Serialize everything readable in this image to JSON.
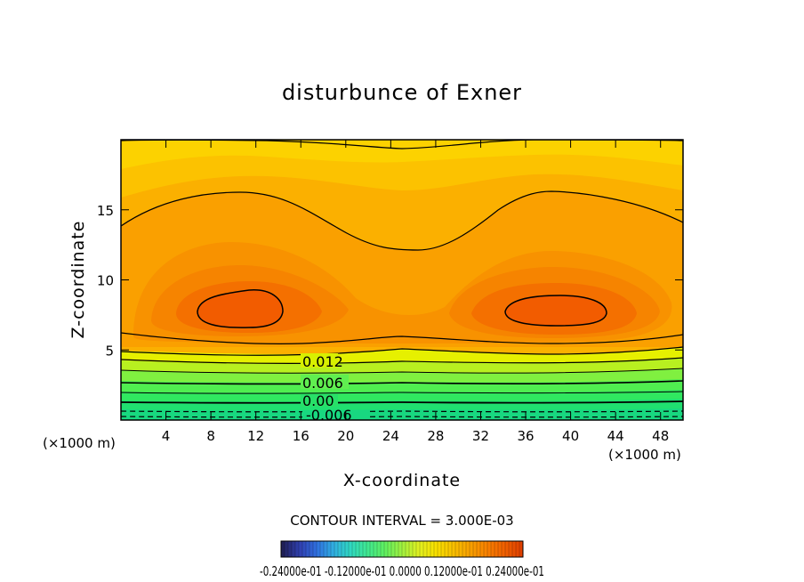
{
  "chart_data": {
    "type": "contour",
    "title": "disturbunce of Exner",
    "xlabel": "X-coordinate",
    "ylabel": "Z-coordinate",
    "x_unit": "(×1000 m)",
    "y_unit": "(×1000 m)",
    "xlim": [
      0,
      50
    ],
    "ylim": [
      0,
      20
    ],
    "x_ticks": [
      4,
      8,
      12,
      16,
      20,
      24,
      28,
      32,
      36,
      40,
      44,
      48
    ],
    "y_ticks": [
      5,
      10,
      15
    ],
    "contour_interval_label": "CONTOUR INTERVAL = 3.000E-03",
    "contour_labels": [
      "0.012",
      "0.006",
      "0.00",
      "-0.006"
    ],
    "colorbar_labels": "-0.24000e-01  -0.12000e-01  0.0000  0.12000e-01  0.24000e-01",
    "colorbar_colors": [
      "#202058",
      "#3040b0",
      "#3070e0",
      "#30b0e0",
      "#30d8c0",
      "#40e890",
      "#60f060",
      "#a0f040",
      "#e0f020",
      "#f8e000",
      "#f8c000",
      "#f8a000",
      "#f88000",
      "#f06000",
      "#e04000"
    ],
    "maxima": [
      {
        "x": 10,
        "z": 8
      },
      {
        "x": 38,
        "z": 8
      }
    ],
    "grid": false
  }
}
